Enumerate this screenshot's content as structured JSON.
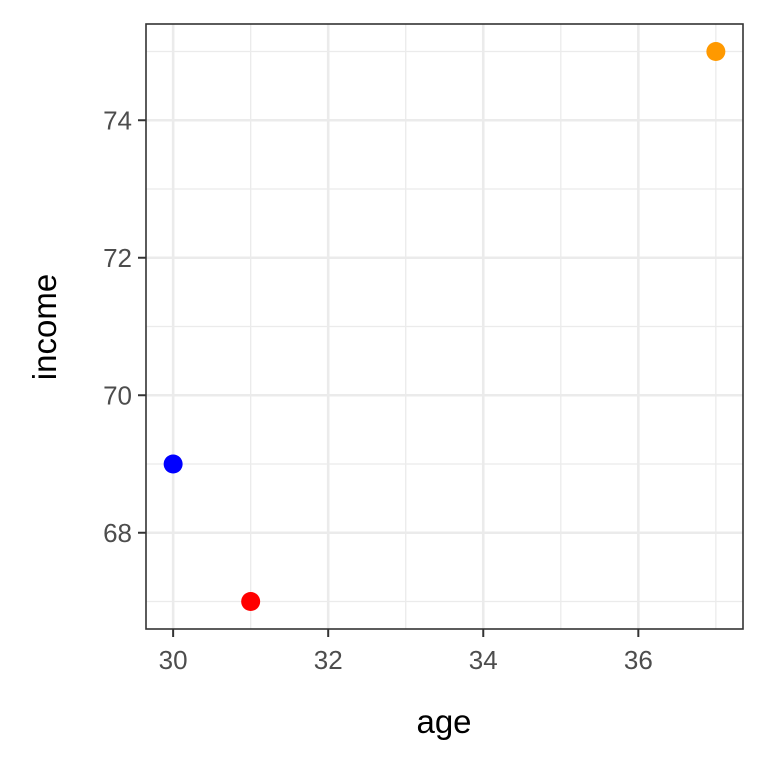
{
  "chart_data": {
    "type": "scatter",
    "title": "",
    "xlabel": "age",
    "ylabel": "income",
    "xlim": [
      29.65,
      37.35
    ],
    "ylim": [
      66.6,
      75.4
    ],
    "x_ticks": [
      30,
      32,
      34,
      36
    ],
    "x_minor_ticks": [
      31,
      33,
      35,
      37
    ],
    "y_ticks": [
      68,
      70,
      72,
      74
    ],
    "y_minor_ticks": [
      67,
      69,
      71,
      73,
      75
    ],
    "grid": true,
    "legend": "none",
    "points": [
      {
        "x": 30,
        "y": 69,
        "color": "#0000ff"
      },
      {
        "x": 31,
        "y": 67,
        "color": "#ff0000"
      },
      {
        "x": 37,
        "y": 75,
        "color": "#ff9900"
      }
    ]
  }
}
